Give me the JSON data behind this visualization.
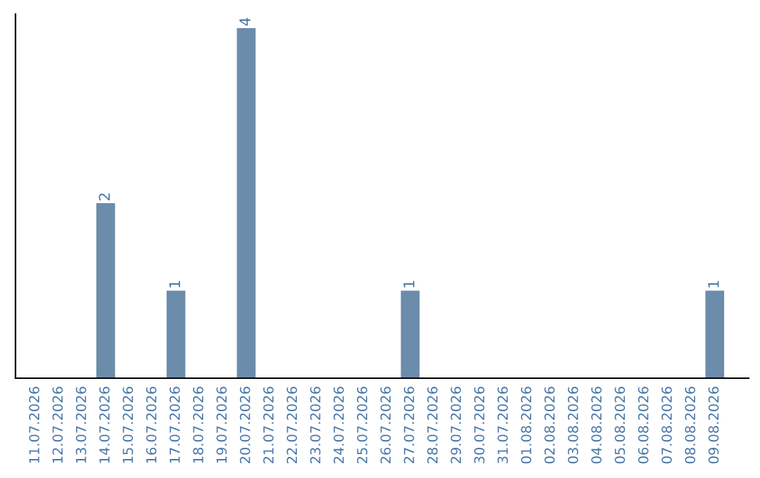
{
  "chart_data": {
    "type": "bar",
    "categories": [
      "11.07.2026",
      "12.07.2026",
      "13.07.2026",
      "14.07.2026",
      "15.07.2026",
      "16.07.2026",
      "17.07.2026",
      "18.07.2026",
      "19.07.2026",
      "20.07.2026",
      "21.07.2026",
      "22.07.2026",
      "23.07.2026",
      "24.07.2026",
      "25.07.2026",
      "26.07.2026",
      "27.07.2026",
      "28.07.2026",
      "29.07.2026",
      "30.07.2026",
      "31.07.2026",
      "01.08.2026",
      "02.08.2026",
      "03.08.2026",
      "04.08.2026",
      "05.08.2026",
      "06.08.2026",
      "07.08.2026",
      "08.08.2026",
      "09.08.2026"
    ],
    "values": [
      0,
      0,
      0,
      2,
      0,
      0,
      1,
      0,
      0,
      4,
      0,
      0,
      0,
      0,
      0,
      0,
      1,
      0,
      0,
      0,
      0,
      0,
      0,
      0,
      0,
      0,
      0,
      0,
      0,
      1
    ],
    "value_labels": [
      null,
      null,
      null,
      "2",
      null,
      null,
      "1",
      null,
      null,
      "4",
      null,
      null,
      null,
      null,
      null,
      null,
      "1",
      null,
      null,
      null,
      null,
      null,
      null,
      null,
      null,
      null,
      null,
      null,
      null,
      "1"
    ],
    "color": "#6b8cab",
    "tick_labels": "x",
    "grid": false
  }
}
